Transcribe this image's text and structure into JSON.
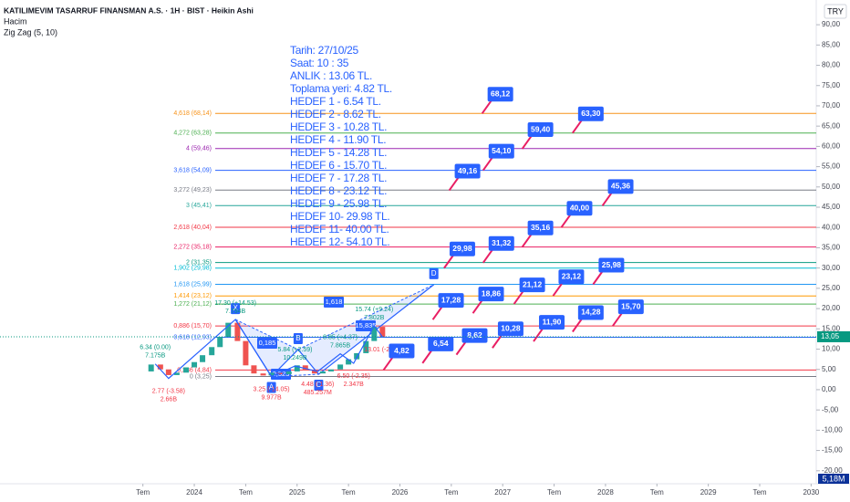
{
  "header": {
    "title": "KATILIMEVIM TASARRUF FINANSMAN A.S. · 1H · BIST · Heikin Ashi",
    "volume": "Hacim",
    "indicator": "Zig Zag (5, 10)",
    "currency": "TRY",
    "last_volume": "5,18M"
  },
  "note": [
    "Tarih:    27/10/25",
    "Saat:     10 : 35",
    "ANLIK :  13.06 TL.",
    "Toplama yeri: 4.82 TL.",
    "HEDEF  1 - 6.54 TL.",
    "HEDEF  2 - 8.62 TL.",
    "HEDEF  3 - 10.28 TL.",
    "HEDEF  4 - 11.90 TL.",
    "HEDEF  5 - 14.28 TL.",
    "HEDEF  6 - 15.70 TL.",
    "HEDEF  7 - 17.28 TL.",
    "HEDEF  8 - 23.12 TL.",
    "HEDEF  9 - 25.98 TL.",
    "HEDEF 10- 29.98 TL.",
    "HEDEF 11- 40.00 TL.",
    "HEDEF 12- 54.10 TL."
  ],
  "chart_data": {
    "type": "candlestick",
    "xlim": [
      2022.11,
      2030.05
    ],
    "xticks": [
      {
        "value": 2023.5,
        "label": "Tem"
      },
      {
        "value": 2024,
        "label": "2024"
      },
      {
        "value": 2024.5,
        "label": "Tem"
      },
      {
        "value": 2025,
        "label": "2025"
      },
      {
        "value": 2025.5,
        "label": "Tem"
      },
      {
        "value": 2026,
        "label": "2026"
      },
      {
        "value": 2026.5,
        "label": "Tem"
      },
      {
        "value": 2027,
        "label": "2027"
      },
      {
        "value": 2027.5,
        "label": "Tem"
      },
      {
        "value": 2028,
        "label": "2028"
      },
      {
        "value": 2028.5,
        "label": "Tem"
      },
      {
        "value": 2029,
        "label": "2029"
      },
      {
        "value": 2029.5,
        "label": "Tem"
      },
      {
        "value": 2030,
        "label": "2030"
      }
    ],
    "ylim": [
      -23.2,
      96.1
    ],
    "yticks": [
      {
        "value": 90,
        "label": "90,00"
      },
      {
        "value": 85,
        "label": "85,00"
      },
      {
        "value": 80,
        "label": "80,00"
      },
      {
        "value": 75,
        "label": "75,00"
      },
      {
        "value": 70,
        "label": "70,00"
      },
      {
        "value": 65,
        "label": "65,00"
      },
      {
        "value": 60,
        "label": "60,00"
      },
      {
        "value": 55,
        "label": "55,00"
      },
      {
        "value": 50,
        "label": "50,00"
      },
      {
        "value": 45,
        "label": "45,00"
      },
      {
        "value": 40,
        "label": "40,00"
      },
      {
        "value": 35,
        "label": "35,00"
      },
      {
        "value": 30,
        "label": "30,00"
      },
      {
        "value": 25,
        "label": "25,00"
      },
      {
        "value": 20,
        "label": "20,00"
      },
      {
        "value": 15,
        "label": "15,00"
      },
      {
        "value": 10,
        "label": "10,00"
      },
      {
        "value": 5,
        "label": "5,00"
      },
      {
        "value": 0,
        "label": "0,00"
      },
      {
        "value": -5,
        "label": "-5,00"
      },
      {
        "value": -10,
        "label": "-10,00"
      },
      {
        "value": -15,
        "label": "-15,00"
      },
      {
        "value": -20,
        "label": "-20,00"
      }
    ],
    "last_price": {
      "value": 13.05,
      "label": "13,05",
      "color": "#089981"
    },
    "x": [
      2023.5,
      2023.58,
      2023.67,
      2023.75,
      2023.83,
      2023.92,
      2024.0,
      2024.08,
      2024.17,
      2024.25,
      2024.33,
      2024.42,
      2024.5,
      2024.58,
      2024.67,
      2024.75,
      2024.83,
      2024.92,
      2025.0,
      2025.08,
      2025.17,
      2025.25,
      2025.33,
      2025.42,
      2025.5,
      2025.58,
      2025.67,
      2025.75,
      2025.83
    ],
    "values": [
      4.5,
      6.2,
      5.0,
      3.6,
      4.2,
      5.5,
      6.8,
      8.5,
      10.5,
      13.0,
      16.5,
      12.0,
      6.0,
      4.0,
      3.5,
      4.2,
      3.8,
      4.5,
      6.0,
      4.8,
      4.0,
      4.5,
      5.0,
      6.2,
      7.5,
      9.0,
      12.0,
      15.5,
      13.05
    ],
    "up_color": "#26a69a",
    "down_color": "#ef5350",
    "fib_levels": [
      {
        "value": 68.14,
        "label": "4,618 (68,14)",
        "color": "#f7931a"
      },
      {
        "value": 63.28,
        "label": "4,272 (63,28)",
        "color": "#4caf50"
      },
      {
        "value": 59.46,
        "label": "4 (59,46)",
        "color": "#9c27b0"
      },
      {
        "value": 54.09,
        "label": "3,618 (54,09)",
        "color": "#2962ff"
      },
      {
        "value": 49.23,
        "label": "3,272 (49,23)",
        "color": "#787b86"
      },
      {
        "value": 45.41,
        "label": "3 (45,41)",
        "color": "#26a69a"
      },
      {
        "value": 40.04,
        "label": "2,618 (40,04)",
        "color": "#f23645"
      },
      {
        "value": 35.18,
        "label": "2,272 (35,18)",
        "color": "#e91e63"
      },
      {
        "value": 31.35,
        "label": "2 (31,35)",
        "color": "#089981"
      },
      {
        "value": 29.98,
        "label": "1,902 (29,98)",
        "color": "#00bcd4"
      },
      {
        "value": 25.99,
        "label": "1,618 (25,99)",
        "color": "#2196f3"
      },
      {
        "value": 23.12,
        "label": "1,414 (23,12)",
        "color": "#ff9800"
      },
      {
        "value": 21.12,
        "label": "1,272 (21,12)",
        "color": "#4caf50"
      },
      {
        "value": 15.7,
        "label": "0,886 (15,70)",
        "color": "#f23645"
      },
      {
        "value": 12.93,
        "label": "0,618 (12,93)",
        "color": "#2962ff"
      },
      {
        "value": 4.84,
        "label": "0,236 (4,84)",
        "color": "#f23645"
      },
      {
        "value": 3.25,
        "label": "0 (3,25)",
        "color": "#787b86"
      }
    ],
    "targets": [
      {
        "x": 2026.8,
        "value": 68.12,
        "label": "68,12"
      },
      {
        "x": 2027.68,
        "value": 63.3,
        "label": "63,30"
      },
      {
        "x": 2027.19,
        "value": 59.4,
        "label": "59,40"
      },
      {
        "x": 2026.81,
        "value": 54.1,
        "label": "54,10"
      },
      {
        "x": 2026.48,
        "value": 49.16,
        "label": "49,16"
      },
      {
        "x": 2027.97,
        "value": 45.36,
        "label": "45,36"
      },
      {
        "x": 2027.57,
        "value": 40.0,
        "label": "40,00"
      },
      {
        "x": 2027.19,
        "value": 35.16,
        "label": "35,16"
      },
      {
        "x": 2026.81,
        "value": 31.32,
        "label": "31,32"
      },
      {
        "x": 2026.43,
        "value": 29.98,
        "label": "29,98"
      },
      {
        "x": 2027.88,
        "value": 25.98,
        "label": "25,98"
      },
      {
        "x": 2027.49,
        "value": 23.12,
        "label": "23,12"
      },
      {
        "x": 2027.11,
        "value": 21.12,
        "label": "21,12"
      },
      {
        "x": 2026.71,
        "value": 18.86,
        "label": "18,86"
      },
      {
        "x": 2026.32,
        "value": 17.28,
        "label": "17,28"
      },
      {
        "x": 2028.07,
        "value": 15.7,
        "label": "15,70"
      },
      {
        "x": 2027.68,
        "value": 14.28,
        "label": "14,28"
      },
      {
        "x": 2027.3,
        "value": 11.9,
        "label": "11,90"
      },
      {
        "x": 2026.9,
        "value": 10.28,
        "label": "10,28"
      },
      {
        "x": 2026.55,
        "value": 8.62,
        "label": "8,62"
      },
      {
        "x": 2026.22,
        "value": 6.54,
        "label": "6,54"
      },
      {
        "x": 2025.84,
        "value": 4.82,
        "label": "4,82"
      }
    ],
    "zigzag": [
      {
        "x": 2023.62,
        "value": 6.34,
        "label": "6.34 (0.00)",
        "volume": "7.175B"
      },
      {
        "x": 2023.75,
        "value": 2.77,
        "label": "2.77 (-3.58)",
        "volume": "2.66B"
      },
      {
        "x": 2024.4,
        "value": 17.3,
        "label": "17.30 (+14.53)",
        "volume": "7.794B"
      },
      {
        "x": 2024.75,
        "value": 3.25,
        "label": "3.25 (-14.05)",
        "volume": "9.977B"
      },
      {
        "x": 2024.98,
        "value": 5.84,
        "label": "5.84 (+2.59)",
        "volume": "10.249B"
      },
      {
        "x": 2025.2,
        "value": 4.48,
        "label": "4.48 (-1.36)",
        "volume": "485.257M"
      },
      {
        "x": 2025.42,
        "value": 8.85,
        "label": "8.85 (+4.37)",
        "volume": "7.865B"
      },
      {
        "x": 2025.55,
        "value": 6.5,
        "label": "6.50 (-2.35)",
        "volume": "2.347B"
      },
      {
        "x": 2025.75,
        "value": 15.74,
        "label": "15.74 (+9.24)",
        "volume": "7.802B"
      },
      {
        "x": 2025.83,
        "value": 13.01,
        "label": "13.01 (-2.73)"
      }
    ],
    "pattern": {
      "color": "#2962ff",
      "points": [
        {
          "label": "X",
          "x": 2024.4,
          "value": 17.3
        },
        {
          "label": "A",
          "x": 2024.75,
          "value": 3.25
        },
        {
          "label": "B",
          "x": 2025.01,
          "value": 9.9
        },
        {
          "label": "C",
          "x": 2025.21,
          "value": 3.8
        },
        {
          "label": "D",
          "x": 2026.33,
          "value": 25.9
        }
      ],
      "ratios": [
        "0,185",
        "0,523",
        "1,618",
        "15,835"
      ]
    }
  }
}
